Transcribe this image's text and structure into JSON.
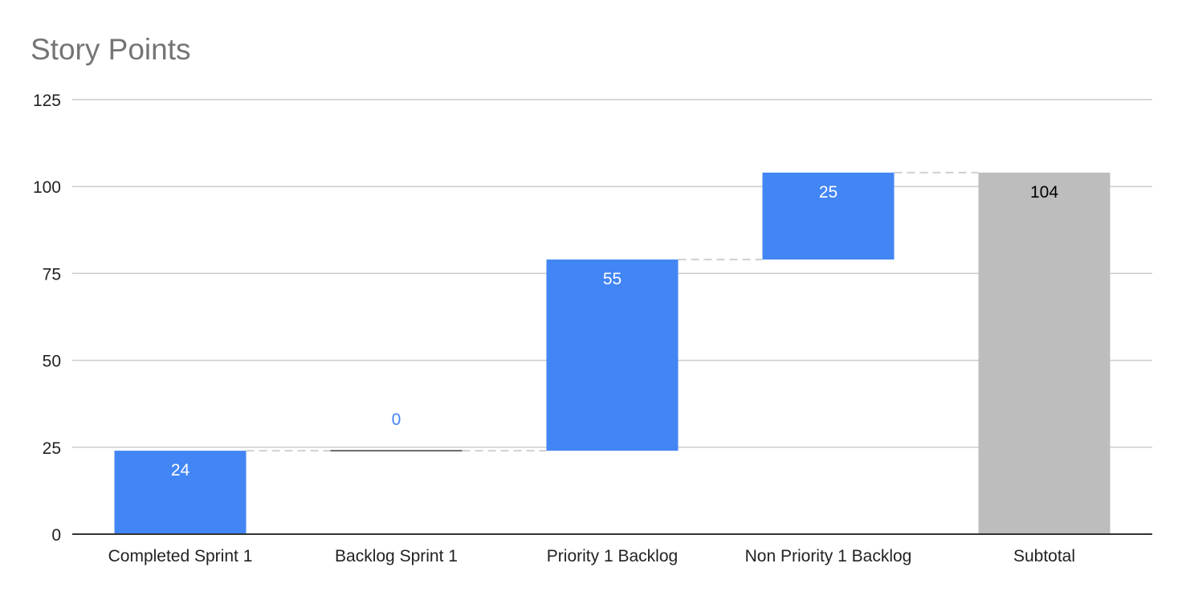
{
  "chart_data": {
    "type": "bar",
    "subtype": "waterfall",
    "title": "Story Points",
    "xlabel": "",
    "ylabel": "",
    "categories": [
      "Completed Sprint 1",
      "Backlog Sprint 1",
      "Priority 1 Backlog",
      "Non Priority 1 Backlog",
      "Subtotal"
    ],
    "values": [
      24,
      0,
      55,
      25,
      104
    ],
    "is_total": [
      false,
      false,
      false,
      false,
      true
    ],
    "data_labels": [
      "24",
      "0",
      "55",
      "25",
      "104"
    ],
    "ylim": [
      0,
      125
    ],
    "yticks": [
      "0",
      "25",
      "50",
      "75",
      "100",
      "125"
    ],
    "grid": true,
    "legend": "none"
  },
  "colors": {
    "increase": "#4285f4",
    "total": "#bdbdbd",
    "grid": "#cccccc",
    "axis": "#333333",
    "connector": "#d0d0d0",
    "title": "#757575",
    "label_inside_increase": "#ffffff",
    "label_inside_total": "#000000",
    "label_zero": "#4285f4",
    "tick_text": "#222222"
  }
}
